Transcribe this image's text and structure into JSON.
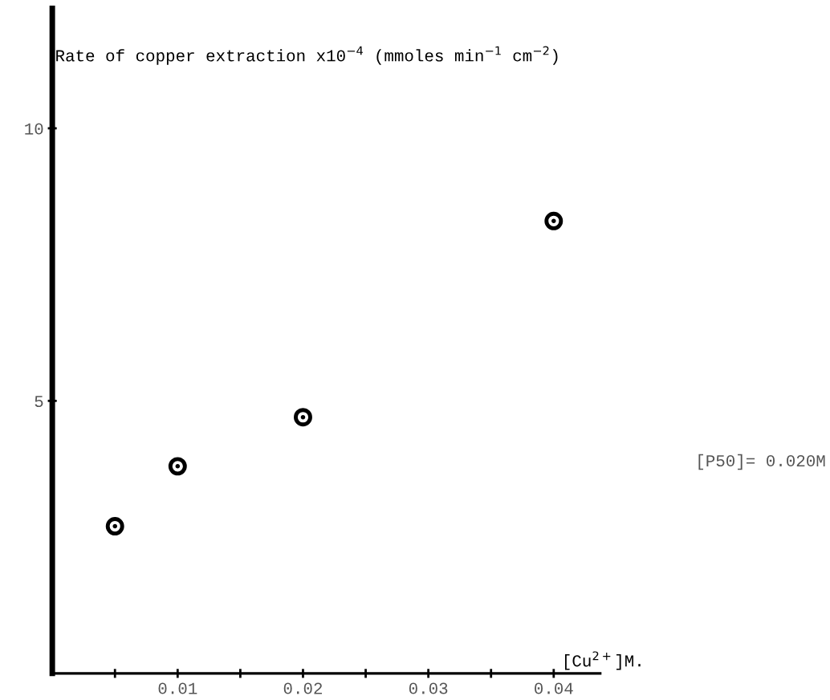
{
  "chart_data": {
    "type": "scatter",
    "ylabel": "Rate of copper extraction x10$^{−4}$ (mmoles min$^{−1}$ cm$^{−2}$)",
    "xlabel": "[Cu$^{2+}$]M.",
    "x": [
      0.005,
      0.01,
      0.02,
      0.04
    ],
    "series": [
      {
        "color": "#000000",
        "values": [
          2.7,
          3.8,
          4.7,
          8.3
        ]
      }
    ],
    "marker": "circle",
    "xlim": [
      0,
      0.0437
    ],
    "ylim": [
      0,
      12.2
    ],
    "xticks": [
      {
        "value": 0.005,
        "label": null
      },
      0.01,
      {
        "value": 0.015,
        "label": null
      },
      0.02,
      {
        "value": 0.025,
        "label": null
      },
      0.03,
      {
        "value": 0.035,
        "label": null
      },
      0.04
    ],
    "yticks": [
      5,
      10
    ],
    "annotations": [
      "[P50]= 0.020M"
    ]
  }
}
